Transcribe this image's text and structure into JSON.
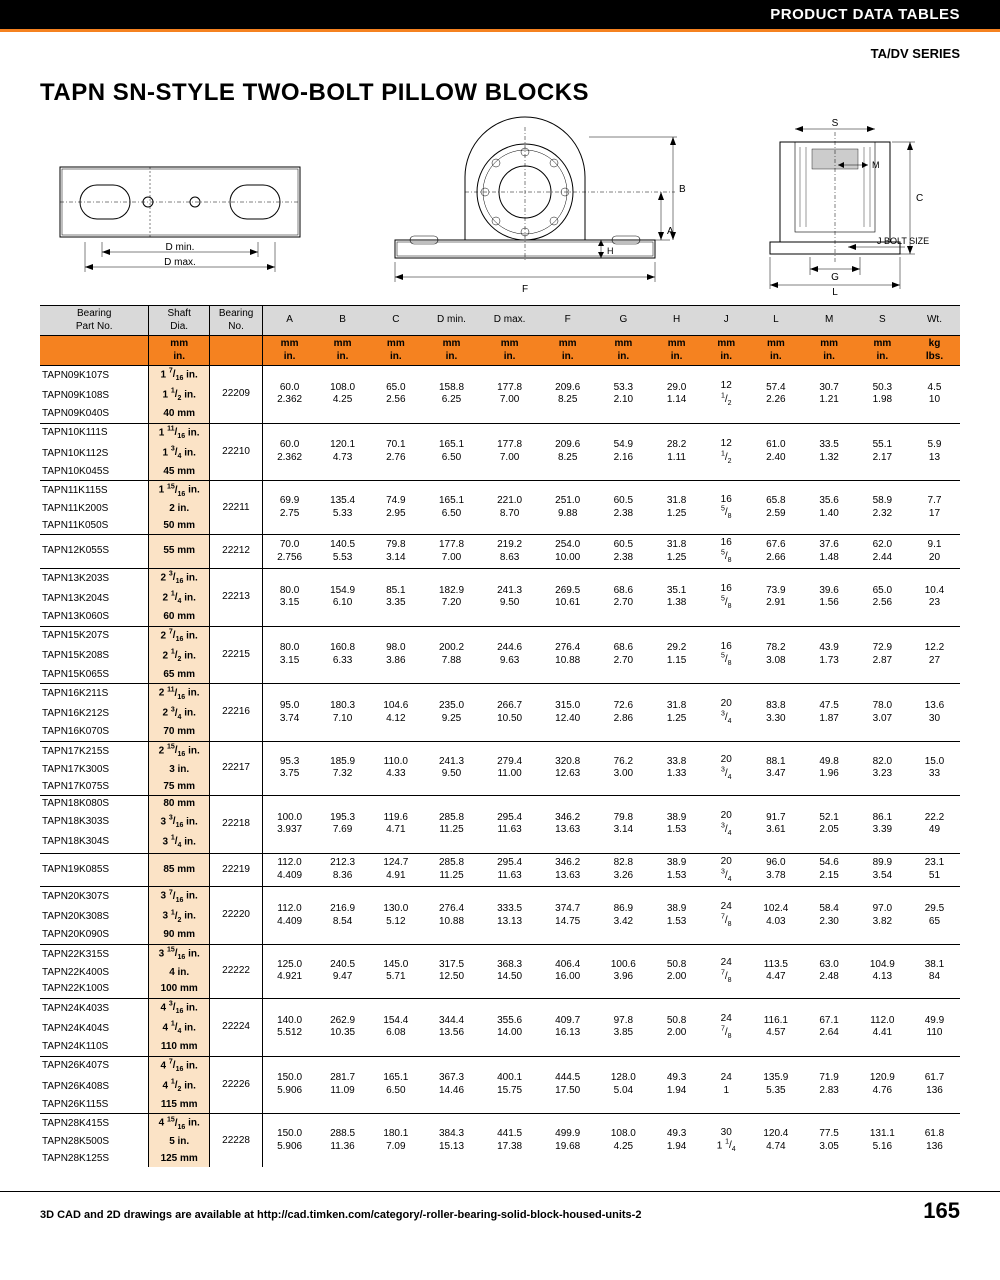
{
  "header": {
    "topbar": "PRODUCT DATA TABLES",
    "series": "TA/DV SERIES",
    "title": "TAPN SN-STYLE TWO-BOLT PILLOW BLOCKS"
  },
  "diagram_labels": {
    "dmin": "D min.",
    "dmax": "D max.",
    "F": "F",
    "A": "A",
    "B": "B",
    "H": "H",
    "S": "S",
    "M": "M",
    "C": "C",
    "G": "G",
    "L": "L",
    "J": "J BOLT SIZE"
  },
  "colors": {
    "orange": "#f58220",
    "grey": "#d9d9d9",
    "shaft_bg": "#fbe3c6"
  },
  "columns": {
    "h1": [
      "Bearing\nPart No.",
      "Shaft\nDia.",
      "Bearing\nNo.",
      "A",
      "B",
      "C",
      "D min.",
      "D max.",
      "F",
      "G",
      "H",
      "J",
      "L",
      "M",
      "S",
      "Wt."
    ],
    "h2": [
      "",
      "mm\nin.",
      "",
      "mm\nin.",
      "mm\nin.",
      "mm\nin.",
      "mm\nin.",
      "mm\nin.",
      "mm\nin.",
      "mm\nin.",
      "mm\nin.",
      "mm\nin.",
      "mm\nin.",
      "mm\nin.",
      "mm\nin.",
      "kg\nlbs."
    ],
    "widths": [
      90,
      50,
      44,
      44,
      44,
      44,
      48,
      48,
      48,
      44,
      44,
      38,
      44,
      44,
      44,
      42
    ]
  },
  "groups": [
    {
      "parts": [
        "TAPN09K107S",
        "TAPN09K108S",
        "TAPN09K040S"
      ],
      "shafts": [
        "1 7/16 in.",
        "1 1/2 in.",
        "40 mm"
      ],
      "bearing": "22209",
      "vals": [
        [
          "60.0",
          "2.362"
        ],
        [
          "108.0",
          "4.25"
        ],
        [
          "65.0",
          "2.56"
        ],
        [
          "158.8",
          "6.25"
        ],
        [
          "177.8",
          "7.00"
        ],
        [
          "209.6",
          "8.25"
        ],
        [
          "53.3",
          "2.10"
        ],
        [
          "29.0",
          "1.14"
        ],
        [
          "12",
          "1/2"
        ],
        [
          "57.4",
          "2.26"
        ],
        [
          "30.7",
          "1.21"
        ],
        [
          "50.3",
          "1.98"
        ],
        [
          "4.5",
          "10"
        ]
      ]
    },
    {
      "parts": [
        "TAPN10K111S",
        "TAPN10K112S",
        "TAPN10K045S"
      ],
      "shafts": [
        "1 11/16 in.",
        "1 3/4 in.",
        "45 mm"
      ],
      "bearing": "22210",
      "vals": [
        [
          "60.0",
          "2.362"
        ],
        [
          "120.1",
          "4.73"
        ],
        [
          "70.1",
          "2.76"
        ],
        [
          "165.1",
          "6.50"
        ],
        [
          "177.8",
          "7.00"
        ],
        [
          "209.6",
          "8.25"
        ],
        [
          "54.9",
          "2.16"
        ],
        [
          "28.2",
          "1.11"
        ],
        [
          "12",
          "1/2"
        ],
        [
          "61.0",
          "2.40"
        ],
        [
          "33.5",
          "1.32"
        ],
        [
          "55.1",
          "2.17"
        ],
        [
          "5.9",
          "13"
        ]
      ]
    },
    {
      "parts": [
        "TAPN11K115S",
        "TAPN11K200S",
        "TAPN11K050S"
      ],
      "shafts": [
        "1 15/16 in.",
        "2 in.",
        "50 mm"
      ],
      "bearing": "22211",
      "vals": [
        [
          "69.9",
          "2.75"
        ],
        [
          "135.4",
          "5.33"
        ],
        [
          "74.9",
          "2.95"
        ],
        [
          "165.1",
          "6.50"
        ],
        [
          "221.0",
          "8.70"
        ],
        [
          "251.0",
          "9.88"
        ],
        [
          "60.5",
          "2.38"
        ],
        [
          "31.8",
          "1.25"
        ],
        [
          "16",
          "5/8"
        ],
        [
          "65.8",
          "2.59"
        ],
        [
          "35.6",
          "1.40"
        ],
        [
          "58.9",
          "2.32"
        ],
        [
          "7.7",
          "17"
        ]
      ]
    },
    {
      "parts": [
        "TAPN12K055S"
      ],
      "shafts": [
        "55 mm"
      ],
      "bearing": "22212",
      "vals": [
        [
          "70.0",
          "2.756"
        ],
        [
          "140.5",
          "5.53"
        ],
        [
          "79.8",
          "3.14"
        ],
        [
          "177.8",
          "7.00"
        ],
        [
          "219.2",
          "8.63"
        ],
        [
          "254.0",
          "10.00"
        ],
        [
          "60.5",
          "2.38"
        ],
        [
          "31.8",
          "1.25"
        ],
        [
          "16",
          "5/8"
        ],
        [
          "67.6",
          "2.66"
        ],
        [
          "37.6",
          "1.48"
        ],
        [
          "62.0",
          "2.44"
        ],
        [
          "9.1",
          "20"
        ]
      ]
    },
    {
      "parts": [
        "TAPN13K203S",
        "TAPN13K204S",
        "TAPN13K060S"
      ],
      "shafts": [
        "2 3/16 in.",
        "2 1/4 in.",
        "60 mm"
      ],
      "bearing": "22213",
      "vals": [
        [
          "80.0",
          "3.15"
        ],
        [
          "154.9",
          "6.10"
        ],
        [
          "85.1",
          "3.35"
        ],
        [
          "182.9",
          "7.20"
        ],
        [
          "241.3",
          "9.50"
        ],
        [
          "269.5",
          "10.61"
        ],
        [
          "68.6",
          "2.70"
        ],
        [
          "35.1",
          "1.38"
        ],
        [
          "16",
          "5/8"
        ],
        [
          "73.9",
          "2.91"
        ],
        [
          "39.6",
          "1.56"
        ],
        [
          "65.0",
          "2.56"
        ],
        [
          "10.4",
          "23"
        ]
      ]
    },
    {
      "parts": [
        "TAPN15K207S",
        "TAPN15K208S",
        "TAPN15K065S"
      ],
      "shafts": [
        "2 7/16 in.",
        "2 1/2 in.",
        "65 mm"
      ],
      "bearing": "22215",
      "vals": [
        [
          "80.0",
          "3.15"
        ],
        [
          "160.8",
          "6.33"
        ],
        [
          "98.0",
          "3.86"
        ],
        [
          "200.2",
          "7.88"
        ],
        [
          "244.6",
          "9.63"
        ],
        [
          "276.4",
          "10.88"
        ],
        [
          "68.6",
          "2.70"
        ],
        [
          "29.2",
          "1.15"
        ],
        [
          "16",
          "5/8"
        ],
        [
          "78.2",
          "3.08"
        ],
        [
          "43.9",
          "1.73"
        ],
        [
          "72.9",
          "2.87"
        ],
        [
          "12.2",
          "27"
        ]
      ]
    },
    {
      "parts": [
        "TAPN16K211S",
        "TAPN16K212S",
        "TAPN16K070S"
      ],
      "shafts": [
        "2 11/16 in.",
        "2 3/4 in.",
        "70 mm"
      ],
      "bearing": "22216",
      "vals": [
        [
          "95.0",
          "3.74"
        ],
        [
          "180.3",
          "7.10"
        ],
        [
          "104.6",
          "4.12"
        ],
        [
          "235.0",
          "9.25"
        ],
        [
          "266.7",
          "10.50"
        ],
        [
          "315.0",
          "12.40"
        ],
        [
          "72.6",
          "2.86"
        ],
        [
          "31.8",
          "1.25"
        ],
        [
          "20",
          "3/4"
        ],
        [
          "83.8",
          "3.30"
        ],
        [
          "47.5",
          "1.87"
        ],
        [
          "78.0",
          "3.07"
        ],
        [
          "13.6",
          "30"
        ]
      ]
    },
    {
      "parts": [
        "TAPN17K215S",
        "TAPN17K300S",
        "TAPN17K075S"
      ],
      "shafts": [
        "2 15/16 in.",
        "3 in.",
        "75 mm"
      ],
      "bearing": "22217",
      "vals": [
        [
          "95.3",
          "3.75"
        ],
        [
          "185.9",
          "7.32"
        ],
        [
          "110.0",
          "4.33"
        ],
        [
          "241.3",
          "9.50"
        ],
        [
          "279.4",
          "11.00"
        ],
        [
          "320.8",
          "12.63"
        ],
        [
          "76.2",
          "3.00"
        ],
        [
          "33.8",
          "1.33"
        ],
        [
          "20",
          "3/4"
        ],
        [
          "88.1",
          "3.47"
        ],
        [
          "49.8",
          "1.96"
        ],
        [
          "82.0",
          "3.23"
        ],
        [
          "15.0",
          "33"
        ]
      ]
    },
    {
      "parts": [
        "TAPN18K080S",
        "TAPN18K303S",
        "TAPN18K304S"
      ],
      "shafts": [
        "80 mm",
        "3 3/16 in.",
        "3 1/4 in."
      ],
      "bearing": "22218",
      "vals": [
        [
          "100.0",
          "3.937"
        ],
        [
          "195.3",
          "7.69"
        ],
        [
          "119.6",
          "4.71"
        ],
        [
          "285.8",
          "11.25"
        ],
        [
          "295.4",
          "11.63"
        ],
        [
          "346.2",
          "13.63"
        ],
        [
          "79.8",
          "3.14"
        ],
        [
          "38.9",
          "1.53"
        ],
        [
          "20",
          "3/4"
        ],
        [
          "91.7",
          "3.61"
        ],
        [
          "52.1",
          "2.05"
        ],
        [
          "86.1",
          "3.39"
        ],
        [
          "22.2",
          "49"
        ]
      ]
    },
    {
      "parts": [
        "TAPN19K085S"
      ],
      "shafts": [
        "85 mm"
      ],
      "bearing": "22219",
      "vals": [
        [
          "112.0",
          "4.409"
        ],
        [
          "212.3",
          "8.36"
        ],
        [
          "124.7",
          "4.91"
        ],
        [
          "285.8",
          "11.25"
        ],
        [
          "295.4",
          "11.63"
        ],
        [
          "346.2",
          "13.63"
        ],
        [
          "82.8",
          "3.26"
        ],
        [
          "38.9",
          "1.53"
        ],
        [
          "20",
          "3/4"
        ],
        [
          "96.0",
          "3.78"
        ],
        [
          "54.6",
          "2.15"
        ],
        [
          "89.9",
          "3.54"
        ],
        [
          "23.1",
          "51"
        ]
      ]
    },
    {
      "parts": [
        "TAPN20K307S",
        "TAPN20K308S",
        "TAPN20K090S"
      ],
      "shafts": [
        "3 7/16 in.",
        "3 1/2 in.",
        "90 mm"
      ],
      "bearing": "22220",
      "vals": [
        [
          "112.0",
          "4.409"
        ],
        [
          "216.9",
          "8.54"
        ],
        [
          "130.0",
          "5.12"
        ],
        [
          "276.4",
          "10.88"
        ],
        [
          "333.5",
          "13.13"
        ],
        [
          "374.7",
          "14.75"
        ],
        [
          "86.9",
          "3.42"
        ],
        [
          "38.9",
          "1.53"
        ],
        [
          "24",
          "7/8"
        ],
        [
          "102.4",
          "4.03"
        ],
        [
          "58.4",
          "2.30"
        ],
        [
          "97.0",
          "3.82"
        ],
        [
          "29.5",
          "65"
        ]
      ]
    },
    {
      "parts": [
        "TAPN22K315S",
        "TAPN22K400S",
        "TAPN22K100S"
      ],
      "shafts": [
        "3 15/16 in.",
        "4 in.",
        "100 mm"
      ],
      "bearing": "22222",
      "vals": [
        [
          "125.0",
          "4.921"
        ],
        [
          "240.5",
          "9.47"
        ],
        [
          "145.0",
          "5.71"
        ],
        [
          "317.5",
          "12.50"
        ],
        [
          "368.3",
          "14.50"
        ],
        [
          "406.4",
          "16.00"
        ],
        [
          "100.6",
          "3.96"
        ],
        [
          "50.8",
          "2.00"
        ],
        [
          "24",
          "7/8"
        ],
        [
          "113.5",
          "4.47"
        ],
        [
          "63.0",
          "2.48"
        ],
        [
          "104.9",
          "4.13"
        ],
        [
          "38.1",
          "84"
        ]
      ]
    },
    {
      "parts": [
        "TAPN24K403S",
        "TAPN24K404S",
        "TAPN24K110S"
      ],
      "shafts": [
        "4 3/16 in.",
        "4 1/4 in.",
        "110 mm"
      ],
      "bearing": "22224",
      "vals": [
        [
          "140.0",
          "5.512"
        ],
        [
          "262.9",
          "10.35"
        ],
        [
          "154.4",
          "6.08"
        ],
        [
          "344.4",
          "13.56"
        ],
        [
          "355.6",
          "14.00"
        ],
        [
          "409.7",
          "16.13"
        ],
        [
          "97.8",
          "3.85"
        ],
        [
          "50.8",
          "2.00"
        ],
        [
          "24",
          "7/8"
        ],
        [
          "116.1",
          "4.57"
        ],
        [
          "67.1",
          "2.64"
        ],
        [
          "112.0",
          "4.41"
        ],
        [
          "49.9",
          "110"
        ]
      ]
    },
    {
      "parts": [
        "TAPN26K407S",
        "TAPN26K408S",
        "TAPN26K115S"
      ],
      "shafts": [
        "4 7/16 in.",
        "4 1/2 in.",
        "115 mm"
      ],
      "bearing": "22226",
      "vals": [
        [
          "150.0",
          "5.906"
        ],
        [
          "281.7",
          "11.09"
        ],
        [
          "165.1",
          "6.50"
        ],
        [
          "367.3",
          "14.46"
        ],
        [
          "400.1",
          "15.75"
        ],
        [
          "444.5",
          "17.50"
        ],
        [
          "128.0",
          "5.04"
        ],
        [
          "49.3",
          "1.94"
        ],
        [
          "24",
          "1"
        ],
        [
          "135.9",
          "5.35"
        ],
        [
          "71.9",
          "2.83"
        ],
        [
          "120.9",
          "4.76"
        ],
        [
          "61.7",
          "136"
        ]
      ]
    },
    {
      "parts": [
        "TAPN28K415S",
        "TAPN28K500S",
        "TAPN28K125S"
      ],
      "shafts": [
        "4 15/16 in.",
        "5 in.",
        "125 mm"
      ],
      "bearing": "22228",
      "vals": [
        [
          "150.0",
          "5.906"
        ],
        [
          "288.5",
          "11.36"
        ],
        [
          "180.1",
          "7.09"
        ],
        [
          "384.3",
          "15.13"
        ],
        [
          "441.5",
          "17.38"
        ],
        [
          "499.9",
          "19.68"
        ],
        [
          "108.0",
          "4.25"
        ],
        [
          "49.3",
          "1.94"
        ],
        [
          "30",
          "1 1/4"
        ],
        [
          "120.4",
          "4.74"
        ],
        [
          "77.5",
          "3.05"
        ],
        [
          "131.1",
          "5.16"
        ],
        [
          "61.8",
          "136"
        ]
      ]
    }
  ],
  "footer": {
    "cad": "3D CAD and 2D drawings are available at http://cad.timken.com/category/-roller-bearing-solid-block-housed-units-2",
    "page": "165"
  }
}
